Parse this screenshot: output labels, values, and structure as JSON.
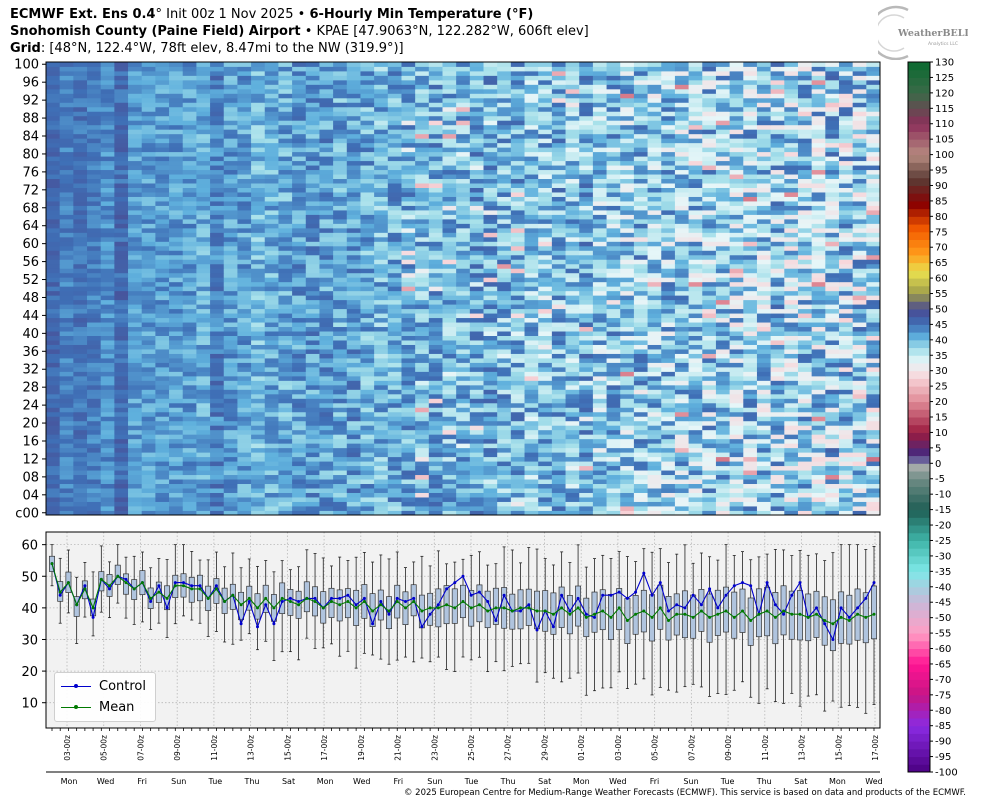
{
  "header": {
    "line1_bold_a": "ECMWF Ext. Ens 0.4",
    "line1_plain": "° Init 00z 1 Nov 2025 • ",
    "line1_bold_b": "6-Hourly Min Temperature (°F)",
    "line2_bold": "Snohomish County (Paine Field) Airport",
    "line2_plain": " • KPAE [47.9063°N, 122.282°W, 606ft elev]",
    "line3_bold": "Grid",
    "line3_plain": ": [48°N, 122.4°W, 78ft elev, 8.47mi to the NW (319.9°)]"
  },
  "logo": {
    "text": "WeatherBELL",
    "subtext": "Analytics LLC"
  },
  "legend": {
    "control": "Control",
    "mean": "Mean"
  },
  "footer": "© 2025 European Centre for Medium-Range Weather Forecasts (ECMWF). This service is based on data and products of the ECMWF.",
  "colors": {
    "control": "#0000cc",
    "mean": "#007a00",
    "box_fill": "#b0c4de",
    "panel_bg": "#f2f2f2"
  },
  "chart_data": [
    {
      "type": "heatmap",
      "ylabel": "",
      "y_tick_labels": [
        "c00",
        "04",
        "08",
        "12",
        "16",
        "20",
        "24",
        "28",
        "32",
        "36",
        "40",
        "44",
        "48",
        "52",
        "56",
        "60",
        "64",
        "68",
        "72",
        "76",
        "80",
        "84",
        "88",
        "92",
        "96",
        "100"
      ],
      "members": 101,
      "time_steps": 61,
      "value_trend_f": [
        46,
        44,
        45,
        44,
        43,
        46,
        42,
        42,
        42,
        42,
        42,
        41,
        44,
        42,
        42,
        40,
        41,
        41,
        42,
        42,
        42,
        41,
        42,
        41,
        40,
        41,
        41,
        40,
        41,
        40,
        40,
        41,
        41,
        40,
        40,
        39,
        39,
        40,
        39,
        40,
        38,
        39,
        38,
        39,
        38,
        38,
        38,
        38,
        38,
        38,
        37,
        38,
        37,
        38,
        37,
        37,
        37,
        38,
        37,
        37,
        37
      ],
      "colorbar": {
        "min": -100,
        "max": 130,
        "tick_labels": [
          "130",
          "125",
          "120",
          "115",
          "110",
          "105",
          "100",
          "95",
          "90",
          "85",
          "80",
          "75",
          "70",
          "65",
          "60",
          "55",
          "50",
          "45",
          "40",
          "35",
          "30",
          "25",
          "20",
          "15",
          "10",
          "5",
          "0",
          "-5",
          "-10",
          "-15",
          "-20",
          "-25",
          "-30",
          "-35",
          "-40",
          "-45",
          "-50",
          "-55",
          "-60",
          "-65",
          "-70",
          "-75",
          "-80",
          "-85",
          "-90",
          "-95",
          "-100"
        ]
      }
    },
    {
      "type": "line",
      "y_tick_labels": [
        "10",
        "20",
        "30",
        "40",
        "50",
        "60"
      ],
      "ylim": [
        2,
        64
      ],
      "x_tick_labels": [
        "03-00z",
        "05-00z",
        "07-00z",
        "09-00z",
        "11-00z",
        "13-00z",
        "15-00z",
        "17-00z",
        "19-00z",
        "21-00z",
        "23-00z",
        "25-00z",
        "27-00z",
        "29-00z",
        "01-00z",
        "03-00z",
        "05-00z",
        "07-00z",
        "09-00z",
        "11-00z",
        "13-00z",
        "15-00z",
        "17-00z"
      ],
      "day_labels": [
        "Mon",
        "Wed",
        "Fri",
        "Sun",
        "Tue",
        "Thu",
        "Sat",
        "Mon",
        "Wed",
        "Fri",
        "Sun",
        "Tue",
        "Thu",
        "Sat",
        "Mon",
        "Wed",
        "Fri",
        "Sun",
        "Tue",
        "Thu",
        "Sat",
        "Mon",
        "Wed"
      ],
      "series": [
        {
          "name": "Control",
          "values": [
            54,
            44,
            48,
            41,
            47,
            37,
            49,
            46,
            50,
            49,
            46,
            48,
            42,
            47,
            40,
            48,
            48,
            47,
            47,
            43,
            47,
            42,
            44,
            35,
            42,
            34,
            41,
            35,
            42,
            43,
            42,
            43,
            43,
            40,
            43,
            43,
            44,
            41,
            43,
            35,
            42,
            38,
            43,
            42,
            43,
            34,
            38,
            41,
            46,
            48,
            50,
            44,
            45,
            42,
            36,
            44,
            39,
            39,
            41,
            33,
            39,
            34,
            44,
            39,
            43,
            38,
            37,
            44,
            44,
            45,
            43,
            45,
            51,
            44,
            48,
            39,
            41,
            40,
            44,
            41,
            46,
            40,
            44,
            47,
            48,
            47,
            38,
            48,
            41,
            38,
            44,
            48,
            37,
            40,
            35,
            30,
            40,
            37,
            40,
            43,
            48
          ]
        },
        {
          "name": "Mean",
          "values": [
            54,
            45,
            48,
            41,
            46,
            40,
            49,
            47,
            50,
            48,
            46,
            48,
            43,
            45,
            43,
            47,
            47,
            46,
            46,
            43,
            46,
            42,
            44,
            41,
            43,
            40,
            43,
            40,
            43,
            42,
            41,
            43,
            42,
            40,
            42,
            41,
            42,
            40,
            42,
            39,
            41,
            39,
            42,
            40,
            42,
            39,
            40,
            40,
            41,
            40,
            42,
            40,
            41,
            39,
            40,
            40,
            39,
            40,
            40,
            39,
            39,
            38,
            40,
            38,
            40,
            37,
            38,
            39,
            37,
            40,
            36,
            38,
            39,
            37,
            40,
            36,
            38,
            38,
            37,
            39,
            37,
            38,
            39,
            37,
            39,
            36,
            38,
            39,
            37,
            39,
            38,
            38,
            37,
            38,
            36,
            35,
            37,
            36,
            38,
            37,
            38
          ]
        }
      ]
    }
  ]
}
